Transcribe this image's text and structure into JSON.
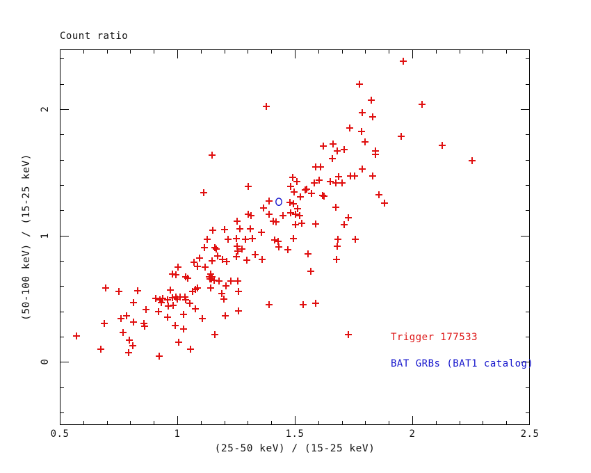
{
  "title": "Count ratio",
  "axes": {
    "x": {
      "label": "(25-50 keV) / (15-25 keV)",
      "range": [
        0.5,
        2.5
      ],
      "major_ticks": [
        0.5,
        1,
        1.5,
        2,
        2.5
      ],
      "tick_labels": [
        "0.5",
        "1",
        "1.5",
        "2",
        "2.5"
      ],
      "minor_step": 0.1
    },
    "y": {
      "label": "(50-100 keV) / (15-25 keV)",
      "range": [
        -0.5,
        2.474
      ],
      "major_ticks": [
        0,
        1,
        2
      ],
      "tick_labels": [
        "0",
        "1",
        "2"
      ],
      "minor_step": 0.2
    }
  },
  "legend": [
    {
      "label": "Trigger 177533",
      "color": "#dd1616"
    },
    {
      "label": "BAT GRBs (BAT1 catalog)",
      "color": "#1414cc"
    }
  ],
  "colors": {
    "background": "#ffffff",
    "frame": "#000000",
    "red_marker": "#e01010",
    "blue_marker": "#1414cc"
  },
  "chart_data": {
    "type": "scatter",
    "title": "Count ratio",
    "xlabel": "(25-50 keV) / (15-25 keV)",
    "ylabel": "(50-100 keV) / (15-25 keV)",
    "xlim": [
      0.5,
      2.5
    ],
    "ylim": [
      -0.5,
      2.474
    ],
    "grid": false,
    "legend_position": "lower-right-inside",
    "series": [
      {
        "name": "Trigger 177533",
        "marker": "plus",
        "color": "#e01010",
        "points": [
          [
            1.379,
            2.022
          ],
          [
            1.148,
            1.636
          ],
          [
            1.302,
            1.388
          ],
          [
            1.112,
            1.339
          ],
          [
            1.391,
            1.273
          ],
          [
            1.491,
            1.46
          ],
          [
            1.509,
            1.427
          ],
          [
            1.482,
            1.388
          ],
          [
            1.497,
            1.344
          ],
          [
            1.524,
            1.306
          ],
          [
            1.544,
            1.361
          ],
          [
            1.479,
            1.262
          ],
          [
            1.494,
            1.251
          ],
          [
            1.367,
            1.218
          ],
          [
            1.302,
            1.168
          ],
          [
            1.314,
            1.157
          ],
          [
            1.391,
            1.168
          ],
          [
            1.408,
            1.113
          ],
          [
            1.42,
            1.107
          ],
          [
            1.45,
            1.157
          ],
          [
            1.482,
            1.179
          ],
          [
            1.254,
            1.113
          ],
          [
            1.151,
            1.041
          ],
          [
            1.201,
            1.047
          ],
          [
            1.266,
            1.052
          ],
          [
            1.311,
            1.052
          ],
          [
            1.358,
            1.025
          ],
          [
            1.962,
            2.38
          ],
          [
            1.775,
            2.198
          ],
          [
            1.825,
            2.072
          ],
          [
            2.041,
            2.039
          ],
          [
            1.787,
            1.972
          ],
          [
            1.831,
            1.939
          ],
          [
            1.734,
            1.851
          ],
          [
            1.784,
            1.824
          ],
          [
            1.953,
            1.785
          ],
          [
            1.799,
            1.741
          ],
          [
            1.621,
            1.708
          ],
          [
            1.663,
            1.724
          ],
          [
            2.127,
            1.713
          ],
          [
            1.68,
            1.669
          ],
          [
            1.71,
            1.68
          ],
          [
            1.843,
            1.669
          ],
          [
            1.843,
            1.642
          ],
          [
            1.66,
            1.609
          ],
          [
            2.254,
            1.592
          ],
          [
            1.589,
            1.543
          ],
          [
            1.609,
            1.543
          ],
          [
            1.787,
            1.526
          ],
          [
            1.603,
            1.438
          ],
          [
            1.686,
            1.466
          ],
          [
            1.831,
            1.471
          ],
          [
            1.737,
            1.471
          ],
          [
            1.754,
            1.471
          ],
          [
            1.583,
            1.416
          ],
          [
            1.651,
            1.427
          ],
          [
            1.675,
            1.416
          ],
          [
            1.701,
            1.416
          ],
          [
            1.55,
            1.366
          ],
          [
            1.571,
            1.333
          ],
          [
            1.618,
            1.317
          ],
          [
            1.624,
            1.311
          ],
          [
            1.858,
            1.322
          ],
          [
            1.882,
            1.256
          ],
          [
            1.675,
            1.223
          ],
          [
            1.53,
            1.096
          ],
          [
            1.728,
            1.14
          ],
          [
            1.589,
            1.091
          ],
          [
            1.71,
            1.085
          ],
          [
            1.512,
            1.212
          ],
          [
            1.503,
            1.168
          ],
          [
            1.521,
            1.157
          ],
          [
            1.503,
            1.085
          ],
          [
            1.127,
            0.97
          ],
          [
            1.216,
            0.97
          ],
          [
            1.251,
            0.975
          ],
          [
            1.29,
            0.97
          ],
          [
            1.32,
            0.975
          ],
          [
            1.414,
            0.964
          ],
          [
            1.429,
            0.953
          ],
          [
            1.494,
            0.975
          ],
          [
            1.115,
            0.903
          ],
          [
            1.16,
            0.903
          ],
          [
            1.166,
            0.892
          ],
          [
            1.254,
            0.915
          ],
          [
            1.257,
            0.876
          ],
          [
            1.275,
            0.892
          ],
          [
            1.432,
            0.909
          ],
          [
            1.47,
            0.887
          ],
          [
            1.095,
            0.821
          ],
          [
            1.148,
            0.799
          ],
          [
            1.172,
            0.837
          ],
          [
            1.192,
            0.81
          ],
          [
            1.21,
            0.793
          ],
          [
            1.251,
            0.832
          ],
          [
            1.296,
            0.804
          ],
          [
            1.331,
            0.848
          ],
          [
            1.361,
            0.81
          ],
          [
            1.071,
            0.788
          ],
          [
            1.086,
            0.755
          ],
          [
            1.003,
            0.749
          ],
          [
            1.118,
            0.749
          ],
          [
            1.142,
            0.694
          ],
          [
            1.136,
            0.672
          ],
          [
            1.148,
            0.672
          ],
          [
            1.139,
            0.656
          ],
          [
            1.145,
            0.656
          ],
          [
            1.157,
            0.645
          ],
          [
            1.178,
            0.639
          ],
          [
            1.036,
            0.672
          ],
          [
            1.044,
            0.661
          ],
          [
            0.979,
            0.694
          ],
          [
            0.994,
            0.689
          ],
          [
            1.077,
            0.573
          ],
          [
            1.086,
            0.584
          ],
          [
            1.065,
            0.556
          ],
          [
            1.142,
            0.584
          ],
          [
            1.189,
            0.54
          ],
          [
            1.207,
            0.601
          ],
          [
            1.198,
            0.496
          ],
          [
            1.228,
            0.639
          ],
          [
            1.257,
            0.639
          ],
          [
            1.26,
            0.556
          ],
          [
            0.695,
            0.584
          ],
          [
            0.751,
            0.556
          ],
          [
            0.831,
            0.562
          ],
          [
            0.97,
            0.567
          ],
          [
            0.908,
            0.501
          ],
          [
            0.926,
            0.49
          ],
          [
            0.938,
            0.501
          ],
          [
            0.932,
            0.468
          ],
          [
            0.959,
            0.49
          ],
          [
            0.979,
            0.507
          ],
          [
            0.994,
            0.512
          ],
          [
            1.0,
            0.496
          ],
          [
            1.012,
            0.512
          ],
          [
            1.033,
            0.512
          ],
          [
            1.036,
            0.49
          ],
          [
            1.053,
            0.463
          ],
          [
            0.814,
            0.468
          ],
          [
            0.92,
            0.397
          ],
          [
            0.962,
            0.441
          ],
          [
            0.982,
            0.446
          ],
          [
            0.867,
            0.413
          ],
          [
            1.077,
            0.419
          ],
          [
            1.391,
            0.452
          ],
          [
            0.76,
            0.342
          ],
          [
            0.784,
            0.364
          ],
          [
            0.814,
            0.314
          ],
          [
            0.959,
            0.353
          ],
          [
            1.027,
            0.375
          ],
          [
            1.107,
            0.342
          ],
          [
            1.204,
            0.364
          ],
          [
            1.26,
            0.402
          ],
          [
            0.689,
            0.303
          ],
          [
            0.858,
            0.303
          ],
          [
            0.861,
            0.281
          ],
          [
            0.991,
            0.287
          ],
          [
            1.027,
            0.259
          ],
          [
            0.769,
            0.231
          ],
          [
            0.571,
            0.204
          ],
          [
            1.16,
            0.215
          ],
          [
            0.796,
            0.171
          ],
          [
            0.811,
            0.127
          ],
          [
            1.006,
            0.154
          ],
          [
            0.675,
            0.099
          ],
          [
            0.793,
            0.072
          ],
          [
            1.056,
            0.099
          ],
          [
            0.923,
            0.044
          ],
          [
            1.683,
            0.97
          ],
          [
            1.757,
            0.97
          ],
          [
            1.68,
            0.915
          ],
          [
            1.556,
            0.854
          ],
          [
            1.678,
            0.81
          ],
          [
            1.568,
            0.716
          ],
          [
            1.589,
            0.463
          ],
          [
            1.536,
            0.452
          ],
          [
            1.728,
            0.215
          ]
        ]
      },
      {
        "name": "BAT GRBs (BAT1 catalog)",
        "marker": "circle-open",
        "color": "#1414cc",
        "points": [
          [
            1.432,
            1.267
          ]
        ]
      }
    ]
  }
}
